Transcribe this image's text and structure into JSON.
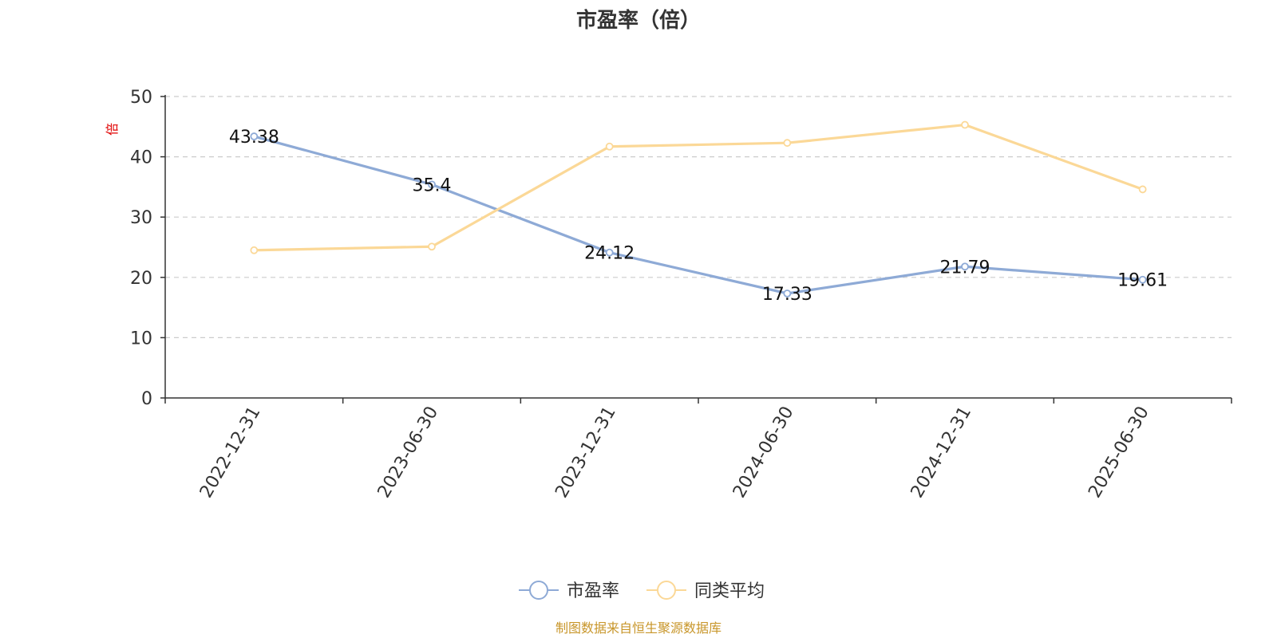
{
  "chart_data": {
    "type": "line",
    "title": "市盈率（倍）",
    "ylabel": "倍",
    "categories": [
      "2022-12-31",
      "2023-06-30",
      "2023-12-31",
      "2024-06-30",
      "2024-12-31",
      "2025-06-30"
    ],
    "ylim": [
      0,
      50
    ],
    "yticks": [
      0,
      10,
      20,
      30,
      40,
      50
    ],
    "grid": true,
    "legend_position": "bottom",
    "series": [
      {
        "name": "市盈率",
        "values": [
          43.38,
          35.4,
          24.12,
          17.33,
          21.79,
          19.61
        ],
        "color": "#8eaad6",
        "show_labels": true,
        "labels": [
          "43.38",
          "35.4",
          "24.12",
          "17.33",
          "21.79",
          "19.61"
        ]
      },
      {
        "name": "同类平均",
        "values": [
          24.5,
          25.1,
          41.7,
          42.3,
          45.3,
          34.6
        ],
        "color": "#fbd897",
        "show_labels": false
      }
    ],
    "source": "制图数据来自恒生聚源数据库"
  }
}
